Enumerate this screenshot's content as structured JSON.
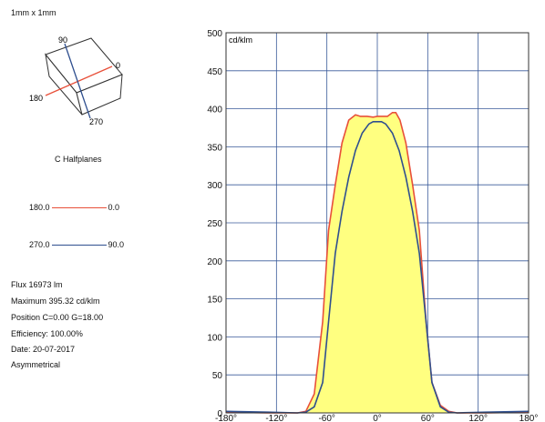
{
  "header": {
    "size_label": "1mm x 1mm"
  },
  "diagram": {
    "labels": {
      "c90": "90",
      "c0": "0",
      "c180": "180",
      "c270": "270"
    },
    "caption": "C Halfplanes",
    "colors": {
      "plane_red": "#e8503a",
      "plane_blue": "#2f4f8f"
    }
  },
  "legend": [
    {
      "left": "180.0",
      "right": "0.0",
      "color": "#e8503a"
    },
    {
      "left": "270.0",
      "right": "90.0",
      "color": "#2f4f8f"
    }
  ],
  "info": {
    "flux": "Flux 16973  lm",
    "maximum": "Maximum 395.32  cd/klm",
    "position": "Position C=0.00 G=18.00",
    "efficiency": "Efficiency: 100.00%",
    "date": "Date: 20-07-2017",
    "symmetry": "Asymmetrical"
  },
  "chart_data": {
    "type": "line",
    "ylabel": "cd/klm",
    "xlim": [
      -180,
      180
    ],
    "ylim": [
      0,
      500
    ],
    "x_ticks": [
      -180,
      -120,
      -60,
      0,
      60,
      120,
      180
    ],
    "x_tick_labels": [
      "-180°",
      "-120°",
      "-60°",
      "0°",
      "60°",
      "120°",
      "180°"
    ],
    "y_ticks": [
      0,
      50,
      100,
      150,
      200,
      250,
      300,
      350,
      400,
      450,
      500
    ],
    "grid": true,
    "fill_color": "#ffff80",
    "series": [
      {
        "legend": "180.0 — 0.0",
        "color": "#e8503a",
        "fill": true,
        "x": [
          -180,
          -130,
          -95,
          -85,
          -75,
          -65,
          -58,
          -50,
          -42,
          -34,
          -26,
          -20,
          -12,
          -5,
          0,
          5,
          12,
          18,
          22,
          27,
          34,
          42,
          50,
          58,
          65,
          75,
          85,
          95,
          130,
          180
        ],
        "y": [
          1,
          0,
          0,
          2,
          25,
          120,
          240,
          300,
          355,
          385,
          392,
          390,
          390,
          389,
          390,
          390,
          390,
          395,
          395,
          385,
          355,
          300,
          240,
          120,
          40,
          10,
          2,
          0,
          0,
          1
        ]
      },
      {
        "legend": "270.0 — 90.0",
        "color": "#2f4f8f",
        "fill": false,
        "x": [
          -180,
          -130,
          -95,
          -85,
          -75,
          -65,
          -58,
          -50,
          -42,
          -34,
          -26,
          -18,
          -10,
          -5,
          0,
          5,
          10,
          18,
          26,
          34,
          42,
          50,
          58,
          65,
          75,
          85,
          95,
          130,
          180
        ],
        "y": [
          2,
          1,
          0,
          1,
          8,
          40,
          120,
          210,
          265,
          310,
          345,
          368,
          380,
          383,
          383,
          383,
          380,
          368,
          345,
          310,
          265,
          210,
          120,
          40,
          8,
          1,
          0,
          1,
          2
        ]
      }
    ]
  }
}
